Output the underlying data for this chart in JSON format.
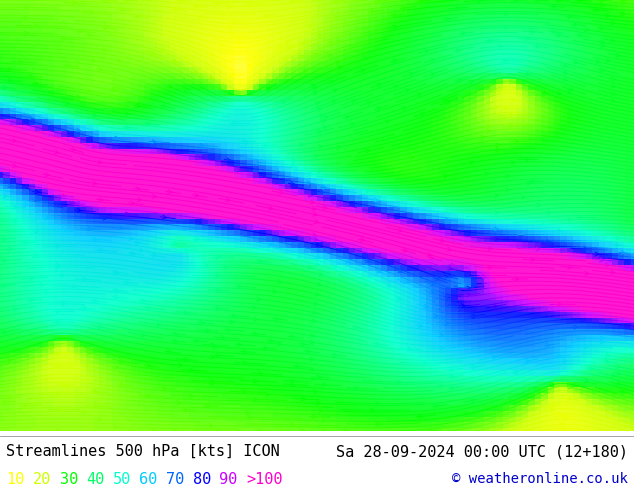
{
  "title_left": "Streamlines 500 hPa [kts] ICON",
  "title_right": "Sa 28-09-2024 00:00 UTC (12+180)",
  "copyright": "© weatheronline.co.uk",
  "legend_values": [
    "10",
    "20",
    "30",
    "40",
    "50",
    "60",
    "70",
    "80",
    "90",
    ">100"
  ],
  "legend_colors": [
    "#ffff00",
    "#ccff00",
    "#00ff00",
    "#00ff66",
    "#00ffcc",
    "#00ccff",
    "#0066ff",
    "#0000ff",
    "#cc00ff",
    "#ff00cc"
  ],
  "bg_color": "#ffffff",
  "colormap_speeds": [
    0,
    10,
    20,
    30,
    40,
    50,
    60,
    70,
    80,
    90,
    100,
    110
  ],
  "colormap_colors": [
    "#ffffff",
    "#ffff00",
    "#ccff00",
    "#00ff00",
    "#00ff66",
    "#00ffcc",
    "#00ccff",
    "#0066ff",
    "#0000ff",
    "#cc00ff",
    "#ff00cc",
    "#ff00cc"
  ],
  "title_fontsize": 11,
  "legend_fontsize": 11,
  "copyright_fontsize": 10
}
